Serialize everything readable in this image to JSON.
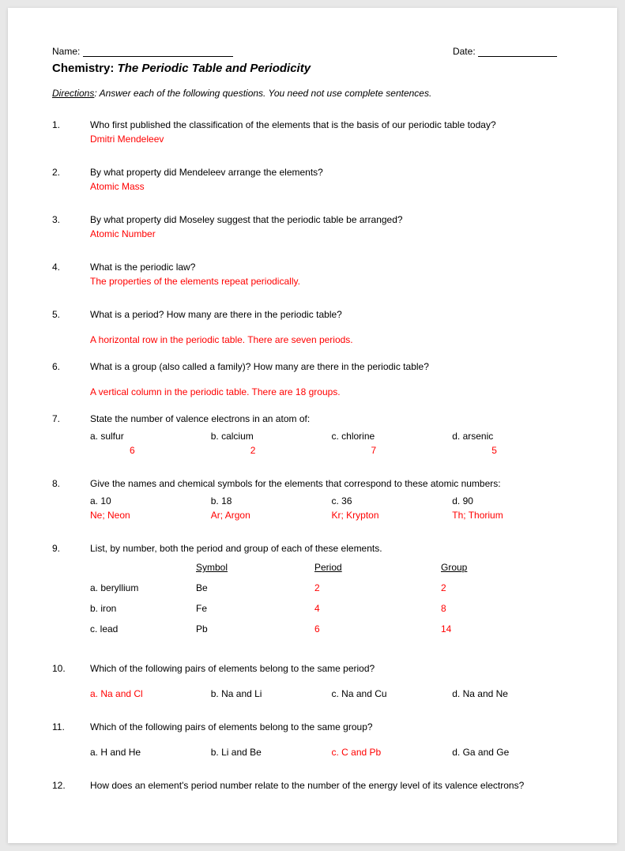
{
  "header": {
    "name_label": "Name:",
    "date_label": "Date:"
  },
  "title": {
    "prefix": "Chemistry:",
    "main": "The Periodic Table and Periodicity"
  },
  "directions": {
    "label": "Directions",
    "text": ": Answer each of the following questions. You need not use complete sentences."
  },
  "q1": {
    "num": "1.",
    "text": "Who first published the classification of the elements that is the basis of our periodic table today?",
    "ans": "Dmitri Mendeleev"
  },
  "q2": {
    "num": "2.",
    "text": "By what property did Mendeleev arrange the elements?",
    "ans": "Atomic Mass"
  },
  "q3": {
    "num": "3.",
    "text": "By what property did Moseley suggest that the periodic table be arranged?",
    "ans": "Atomic Number"
  },
  "q4": {
    "num": "4.",
    "text": "What is the periodic law?",
    "ans": "The properties of the elements repeat periodically."
  },
  "q5": {
    "num": "5.",
    "text": "What is a period? How many are there in the periodic table?",
    "ans": "A horizontal row in the periodic table.  There are seven periods."
  },
  "q6": {
    "num": "6.",
    "text": "What is a group (also called a family)? How many are there in the periodic table?",
    "ans": "A vertical column in the periodic table.  There are 18 groups."
  },
  "q7": {
    "num": "7.",
    "text": "State the number of valence electrons in an atom of:",
    "a_label": "a. sulfur",
    "a_ans": "6",
    "b_label": "b. calcium",
    "b_ans": "2",
    "c_label": "c. chlorine",
    "c_ans": "7",
    "d_label": "d. arsenic",
    "d_ans": "5"
  },
  "q8": {
    "num": "8.",
    "text": "Give the names and chemical symbols for the elements that correspond to these atomic numbers:",
    "a_label": "a. 10",
    "a_ans": "Ne; Neon",
    "b_label": "b. 18",
    "b_ans": "Ar; Argon",
    "c_label": "c. 36",
    "c_ans": "Kr; Krypton",
    "d_label": "d. 90",
    "d_ans": "Th; Thorium"
  },
  "q9": {
    "num": "9.",
    "text": "List, by number, both the period and group of each of these elements.",
    "h_symbol": "Symbol",
    "h_period": "Period",
    "h_group": "Group",
    "rows": [
      {
        "el": "a. beryllium",
        "sym": "Be",
        "period": "2",
        "group": "2"
      },
      {
        "el": "b. iron",
        "sym": "Fe",
        "period": "4",
        "group": "8"
      },
      {
        "el": "c. lead",
        "sym": "Pb",
        "period": "6",
        "group": "14"
      }
    ]
  },
  "q10": {
    "num": "10.",
    "text": "Which of the following pairs of elements belong to the same period?",
    "a": "a.  Na  and  Cl",
    "b": "b.  Na  and  Li",
    "c": "c.  Na  and  Cu",
    "d": "d.  Na  and  Ne",
    "correct": "a"
  },
  "q11": {
    "num": "11.",
    "text": "Which of the following pairs of elements belong to the same group?",
    "a": "a.  H  and  He",
    "b": "b.  Li  and  Be",
    "c": "c.  C  and  Pb",
    "d": "d.  Ga  and  Ge",
    "correct": "c"
  },
  "q12": {
    "num": "12.",
    "text": "How does an element's period number relate to the number of the energy level of its valence electrons?"
  },
  "colors": {
    "answer": "#ff0000",
    "text": "#000000",
    "page_bg": "#ffffff",
    "outer_bg": "#e8e8e8"
  }
}
